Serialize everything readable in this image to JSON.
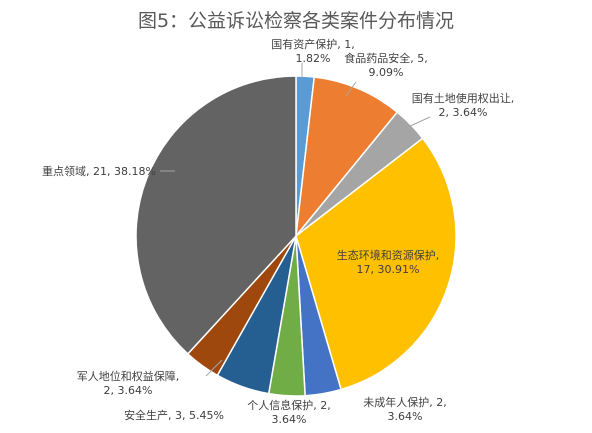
{
  "chart_data": {
    "type": "pie",
    "title": "图5：公益诉讼检察各类案件分布情况",
    "unit_total": 55,
    "slices": [
      {
        "name": "国有资产保护",
        "value": 1,
        "percent": "1.82%",
        "color": "#5B9BD5"
      },
      {
        "name": "食品药品安全",
        "value": 5,
        "percent": "9.09%",
        "color": "#ED7D31"
      },
      {
        "name": "国有土地使用权出让",
        "value": 2,
        "percent": "3.64%",
        "color": "#A5A5A5"
      },
      {
        "name": "生态环境和资源保护",
        "value": 17,
        "percent": "30.91%",
        "color": "#FFC000"
      },
      {
        "name": "未成年人保护",
        "value": 2,
        "percent": "3.64%",
        "color": "#4472C4"
      },
      {
        "name": "个人信息保护",
        "value": 2,
        "percent": "3.64%",
        "color": "#70AD47"
      },
      {
        "name": "安全生产",
        "value": 3,
        "percent": "5.45%",
        "color": "#255E91"
      },
      {
        "name": "军人地位和权益保障",
        "value": 2,
        "percent": "3.64%",
        "color": "#9E480E"
      },
      {
        "name": "重点领域",
        "value": 21,
        "percent": "38.18%",
        "color": "#636363"
      }
    ],
    "labels": [
      {
        "line1": "国有资产保护, 1,",
        "line2": "1.82%"
      },
      {
        "line1": "食品药品安全, 5,",
        "line2": "9.09%"
      },
      {
        "line1": "国有土地使用权出让,",
        "line2": "2, 3.64%"
      },
      {
        "line1": "生态环境和资源保护,",
        "line2": "17, 30.91%"
      },
      {
        "line1": "未成年人保护, 2,",
        "line2": "3.64%"
      },
      {
        "line1": "个人信息保护, 2,",
        "line2": "3.64%"
      },
      {
        "line1": "安全生产, 3, 5.45%",
        "line2": ""
      },
      {
        "line1": "军人地位和权益保障,",
        "line2": "2, 3.64%"
      },
      {
        "line1": "重点领域, 21, 38.18%",
        "line2": ""
      }
    ],
    "legend": "none"
  }
}
